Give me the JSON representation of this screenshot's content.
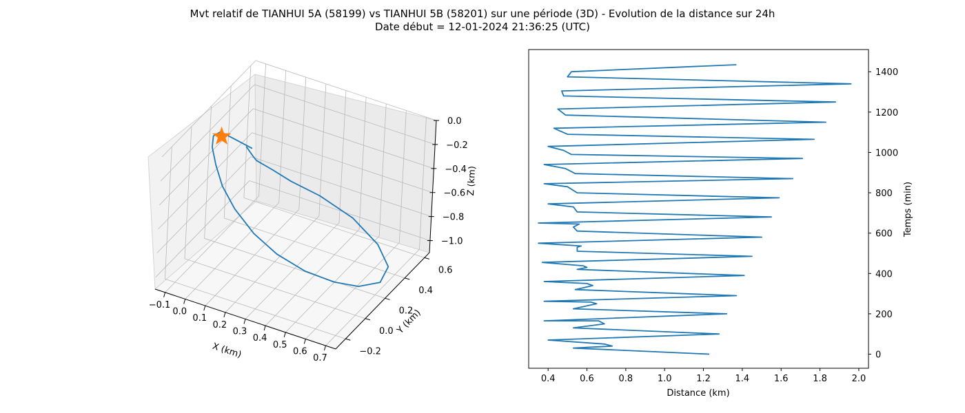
{
  "figure": {
    "title_line1": "Mvt relatif de TIANHUI 5A (58199) vs TIANHUI 5B (58201) sur une période (3D) - Evolution de la distance sur 24h",
    "title_line2": "Date début = 12-01-2024 21:36:25 (UTC)"
  },
  "chart_data": [
    {
      "type": "line3d",
      "xlabel": "X (km)",
      "ylabel": "Y (km)",
      "zlabel": "Z (km)",
      "xlim": [
        -0.15,
        0.75
      ],
      "ylim": [
        -0.3,
        0.65
      ],
      "zlim": [
        -1.1,
        0.0
      ],
      "xticks": [
        "−0.1",
        "0.0",
        "0.1",
        "0.2",
        "0.3",
        "0.4",
        "0.5",
        "0.6",
        "0.7"
      ],
      "yticks": [
        "−0.2",
        "0.0",
        "0.2",
        "0.4",
        "0.6"
      ],
      "zticks": [
        "0.0",
        "−0.2",
        "−0.4",
        "−0.6",
        "−0.8",
        "−1.0"
      ],
      "grid": true,
      "series": [
        {
          "color": "#1f77b4",
          "x": [
            0.1,
            0.13,
            0.14,
            0.19,
            0.25,
            0.35,
            0.48,
            0.6,
            0.68,
            0.69,
            0.64,
            0.57,
            0.47,
            0.36,
            0.26,
            0.16,
            0.08,
            0.02,
            -0.03,
            -0.05,
            -0.03,
            0.03,
            0.13
          ],
          "y": [
            0.05,
            0.06,
            0.08,
            0.15,
            0.22,
            0.32,
            0.4,
            0.42,
            0.37,
            0.27,
            0.15,
            0.04,
            -0.06,
            -0.13,
            -0.17,
            -0.17,
            -0.14,
            -0.09,
            -0.03,
            0.02,
            0.05,
            0.06,
            0.05
          ],
          "z": [
            -0.07,
            -0.14,
            -0.19,
            -0.3,
            -0.42,
            -0.57,
            -0.75,
            -0.92,
            -1.02,
            -1.06,
            -1.02,
            -0.93,
            -0.81,
            -0.67,
            -0.52,
            -0.37,
            -0.25,
            -0.15,
            -0.08,
            -0.04,
            -0.02,
            -0.05,
            -0.07
          ]
        },
        {
          "type": "marker",
          "marker": "star",
          "color": "#ff7f0e",
          "x": [
            0.0
          ],
          "y": [
            0.0
          ],
          "z": [
            0.0
          ]
        }
      ]
    },
    {
      "type": "line",
      "xlabel": "Distance (km)",
      "ylabel": "Temps (min)",
      "xlim": [
        0.3,
        2.05
      ],
      "ylim": [
        -70,
        1510
      ],
      "xticks": [
        0.4,
        0.6,
        0.8,
        1.0,
        1.2,
        1.4,
        1.6,
        1.8,
        2.0
      ],
      "yticks": [
        0,
        200,
        400,
        600,
        800,
        1000,
        1200,
        1400
      ],
      "yaxis_position": "right",
      "grid": false,
      "series": [
        {
          "color": "#1f77b4",
          "min_points": [
            [
              0,
              1.23
            ],
            [
              30,
              0.53
            ],
            [
              40,
              0.73
            ],
            [
              50,
              0.69
            ],
            [
              70,
              0.4
            ],
            [
              100,
              1.28
            ],
            [
              130,
              0.53
            ],
            [
              150,
              0.69
            ],
            [
              165,
              0.66
            ],
            [
              165,
              0.38
            ],
            [
              200,
              1.32
            ],
            [
              225,
              0.53
            ],
            [
              250,
              0.65
            ],
            [
              258,
              0.62
            ],
            [
              262,
              0.38
            ],
            [
              290,
              1.37
            ],
            [
              320,
              0.54
            ],
            [
              340,
              0.63
            ],
            [
              350,
              0.6
            ],
            [
              360,
              0.38
            ],
            [
              390,
              1.41
            ],
            [
              420,
              0.55
            ],
            [
              430,
              0.6
            ],
            [
              438,
              0.58
            ],
            [
              455,
              0.37
            ],
            [
              485,
              1.45
            ],
            [
              510,
              0.55
            ],
            [
              530,
              0.55
            ],
            [
              536,
              0.57
            ],
            [
              550,
              0.35
            ],
            [
              580,
              1.5
            ],
            [
              610,
              0.55
            ],
            [
              630,
              0.53
            ],
            [
              645,
              0.56
            ],
            [
              650,
              0.35
            ],
            [
              680,
              1.55
            ],
            [
              705,
              0.55
            ],
            [
              730,
              0.53
            ],
            [
              745,
              0.4
            ],
            [
              775,
              1.59
            ],
            [
              800,
              0.55
            ],
            [
              830,
              0.5
            ],
            [
              845,
              0.38
            ],
            [
              870,
              1.66
            ],
            [
              895,
              0.54
            ],
            [
              920,
              0.49
            ],
            [
              940,
              0.38
            ],
            [
              970,
              1.71
            ],
            [
              990,
              0.52
            ],
            [
              1010,
              0.48
            ],
            [
              1030,
              0.4
            ],
            [
              1065,
              1.77
            ],
            [
              1090,
              0.5
            ],
            [
              1120,
              0.43
            ],
            [
              1150,
              1.83
            ],
            [
              1185,
              0.49
            ],
            [
              1215,
              0.45
            ],
            [
              1250,
              1.88
            ],
            [
              1280,
              0.48
            ],
            [
              1305,
              0.47
            ],
            [
              1340,
              1.96
            ],
            [
              1375,
              0.5
            ],
            [
              1400,
              0.52
            ],
            [
              1435,
              1.37
            ]
          ]
        }
      ]
    }
  ]
}
